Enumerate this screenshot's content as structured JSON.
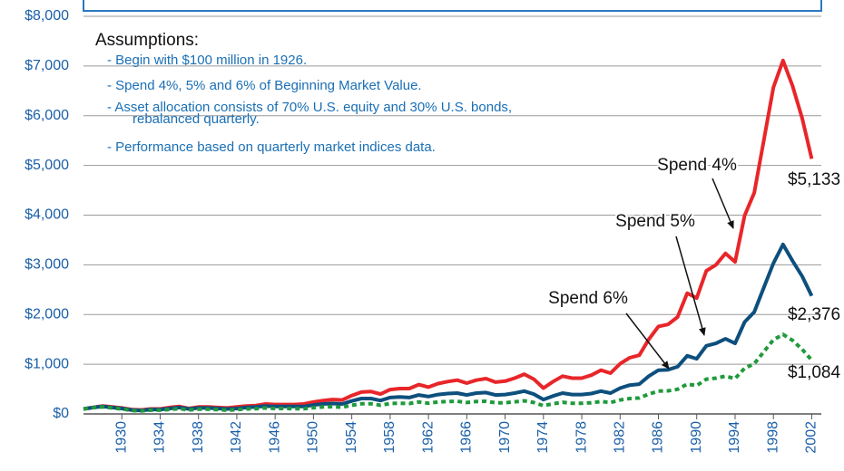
{
  "chart_data": {
    "type": "line",
    "assumptions": {
      "title": "Assumptions:",
      "items": [
        [
          "- Begin with $100 million in 1926."
        ],
        [
          "- Spend 4%, 5% and 6% of Beginning Market Value."
        ],
        [
          "- Asset allocation consists of 70% U.S. equity and 30% U.S. bonds,",
          "rebalanced quarterly."
        ],
        [
          "- Performance based on quarterly market indices data."
        ]
      ]
    },
    "x": [
      1926,
      1927,
      1928,
      1929,
      1930,
      1931,
      1932,
      1933,
      1934,
      1935,
      1936,
      1937,
      1938,
      1939,
      1940,
      1941,
      1942,
      1943,
      1944,
      1945,
      1946,
      1947,
      1948,
      1949,
      1950,
      1951,
      1952,
      1953,
      1954,
      1955,
      1956,
      1957,
      1958,
      1959,
      1960,
      1961,
      1962,
      1963,
      1964,
      1965,
      1966,
      1967,
      1968,
      1969,
      1970,
      1971,
      1972,
      1973,
      1974,
      1975,
      1976,
      1977,
      1978,
      1979,
      1980,
      1981,
      1982,
      1983,
      1984,
      1985,
      1986,
      1987,
      1988,
      1989,
      1990,
      1991,
      1992,
      1993,
      1994,
      1995,
      1996,
      1997,
      1998,
      1999,
      2000,
      2001,
      2002
    ],
    "series": [
      {
        "name": "Spend 4%",
        "color": "#e8262a",
        "dash": false,
        "end_label": "$5,133",
        "values": [
          100,
          130,
          160,
          140,
          120,
          90,
          80,
          100,
          100,
          130,
          150,
          110,
          140,
          140,
          130,
          120,
          140,
          160,
          170,
          200,
          190,
          190,
          190,
          200,
          240,
          270,
          290,
          280,
          370,
          440,
          450,
          400,
          490,
          510,
          510,
          590,
          540,
          610,
          650,
          680,
          620,
          680,
          710,
          640,
          660,
          720,
          800,
          700,
          520,
          650,
          760,
          720,
          720,
          780,
          880,
          820,
          1010,
          1130,
          1180,
          1500,
          1760,
          1800,
          1950,
          2430,
          2330,
          2880,
          3000,
          3230,
          3060,
          3990,
          4450,
          5500,
          6570,
          7110,
          6600,
          5950,
          5133
        ]
      },
      {
        "name": "Spend 5%",
        "color": "#0d4f7d",
        "dash": false,
        "end_label": "$2,376",
        "values": [
          100,
          130,
          150,
          130,
          110,
          80,
          70,
          90,
          90,
          110,
          130,
          100,
          120,
          120,
          110,
          100,
          110,
          130,
          140,
          160,
          150,
          150,
          150,
          150,
          180,
          200,
          210,
          200,
          260,
          310,
          310,
          270,
          330,
          340,
          330,
          380,
          350,
          390,
          410,
          420,
          380,
          420,
          430,
          380,
          390,
          420,
          460,
          400,
          290,
          360,
          420,
          390,
          390,
          410,
          460,
          420,
          520,
          580,
          600,
          760,
          880,
          890,
          950,
          1170,
          1110,
          1370,
          1420,
          1510,
          1420,
          1850,
          2050,
          2540,
          3030,
          3410,
          3080,
          2770,
          2376
        ]
      },
      {
        "name": "Spend 6%",
        "color": "#1f9a3c",
        "dash": true,
        "end_label": "$1,084",
        "values": [
          100,
          125,
          140,
          120,
          100,
          70,
          60,
          75,
          75,
          90,
          105,
          80,
          95,
          95,
          85,
          75,
          85,
          100,
          105,
          120,
          110,
          110,
          105,
          105,
          125,
          140,
          145,
          135,
          175,
          205,
          205,
          175,
          210,
          215,
          210,
          240,
          215,
          240,
          250,
          255,
          230,
          250,
          255,
          225,
          225,
          245,
          265,
          230,
          165,
          205,
          235,
          215,
          215,
          225,
          250,
          230,
          280,
          310,
          320,
          400,
          460,
          465,
          495,
          600,
          570,
          700,
          720,
          760,
          710,
          920,
          1010,
          1250,
          1490,
          1600,
          1480,
          1300,
          1084
        ]
      }
    ],
    "xlim": [
      1926,
      2003
    ],
    "xticks": [
      1930,
      1934,
      1938,
      1942,
      1946,
      1950,
      1954,
      1958,
      1962,
      1966,
      1970,
      1974,
      1978,
      1982,
      1986,
      1990,
      1994,
      1998,
      2002
    ],
    "ylim": [
      0,
      8000
    ],
    "yticks": [
      {
        "value": 0,
        "label": "$0"
      },
      {
        "value": 1000,
        "label": "$1,000"
      },
      {
        "value": 2000,
        "label": "$2,000"
      },
      {
        "value": 3000,
        "label": "$3,000"
      },
      {
        "value": 4000,
        "label": "$4,000"
      },
      {
        "value": 5000,
        "label": "$5,000"
      },
      {
        "value": 6000,
        "label": "$6,000"
      },
      {
        "value": 7000,
        "label": "$7,000"
      },
      {
        "value": 8000,
        "label": "$8,000"
      }
    ],
    "grid": true
  }
}
